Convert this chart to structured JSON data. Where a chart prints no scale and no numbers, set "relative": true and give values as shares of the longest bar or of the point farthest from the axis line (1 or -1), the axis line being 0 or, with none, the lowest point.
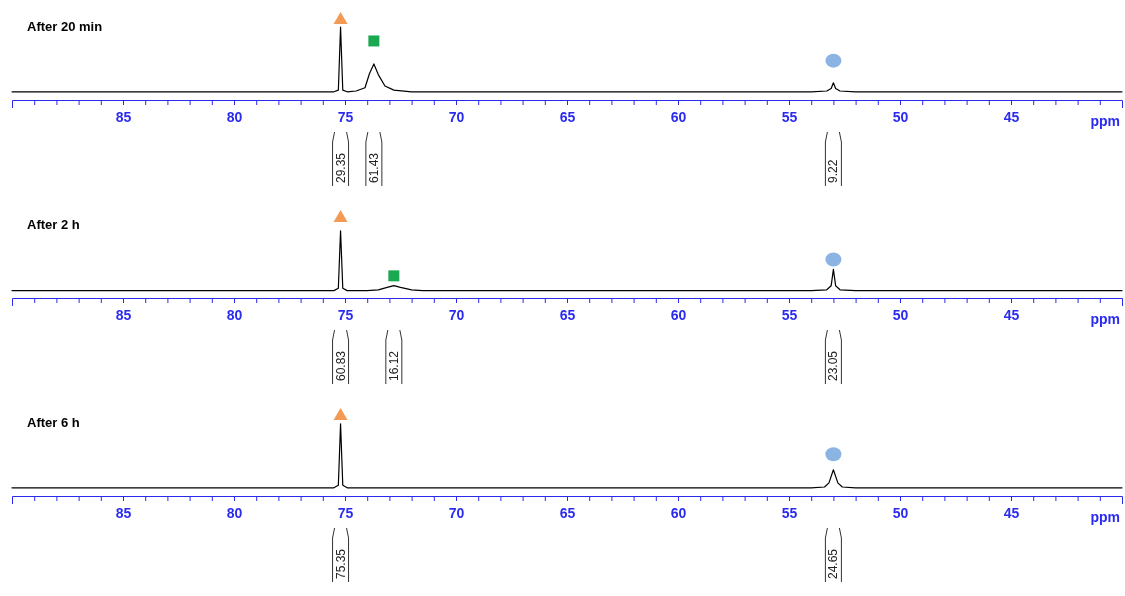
{
  "chart_data": [
    {
      "type": "line",
      "title": "After 20 min",
      "xlabel": "ppm",
      "xlim": [
        90,
        40
      ],
      "relative": true,
      "xticks": [
        {
          "value": 89,
          "label": null
        },
        {
          "value": 88,
          "label": null
        },
        {
          "value": 87,
          "label": null
        },
        {
          "value": 86,
          "label": null
        },
        85,
        {
          "value": 84,
          "label": null
        },
        {
          "value": 83,
          "label": null
        },
        {
          "value": 82,
          "label": null
        },
        {
          "value": 81,
          "label": null
        },
        80,
        {
          "value": 79,
          "label": null
        },
        {
          "value": 78,
          "label": null
        },
        {
          "value": 77,
          "label": null
        },
        {
          "value": 76,
          "label": null
        },
        75,
        {
          "value": 74,
          "label": null
        },
        {
          "value": 73,
          "label": null
        },
        {
          "value": 72,
          "label": null
        },
        {
          "value": 71,
          "label": null
        },
        70,
        {
          "value": 69,
          "label": null
        },
        {
          "value": 68,
          "label": null
        },
        {
          "value": 67,
          "label": null
        },
        {
          "value": 66,
          "label": null
        },
        65,
        {
          "value": 64,
          "label": null
        },
        {
          "value": 63,
          "label": null
        },
        {
          "value": 62,
          "label": null
        },
        {
          "value": 61,
          "label": null
        },
        60,
        {
          "value": 59,
          "label": null
        },
        {
          "value": 58,
          "label": null
        },
        {
          "value": 57,
          "label": null
        },
        {
          "value": 56,
          "label": null
        },
        55,
        {
          "value": 54,
          "label": null
        },
        {
          "value": 53,
          "label": null
        },
        {
          "value": 52,
          "label": null
        },
        {
          "value": 51,
          "label": null
        },
        50,
        {
          "value": 49,
          "label": null
        },
        {
          "value": 48,
          "label": null
        },
        {
          "value": 47,
          "label": null
        },
        {
          "value": 46,
          "label": null
        },
        45,
        {
          "value": 44,
          "label": null
        },
        {
          "value": 43,
          "label": null
        },
        {
          "value": 42,
          "label": null
        },
        {
          "value": 41,
          "label": null
        }
      ],
      "series": [
        {
          "type": "line",
          "color": "#000000",
          "x": [
            90,
            80,
            76,
            75.5,
            75.3,
            75.2,
            75.1,
            74.9,
            74.5,
            74.1,
            73.9,
            73.7,
            73.5,
            73.2,
            72.8,
            72,
            65,
            60,
            54,
            53.3,
            53.1,
            53.0,
            52.9,
            52.7,
            52,
            45,
            40
          ],
          "values": [
            0.1,
            0.1,
            0.1,
            0.1,
            0.12,
            0.89,
            0.12,
            0.1,
            0.11,
            0.15,
            0.32,
            0.44,
            0.31,
            0.17,
            0.12,
            0.1,
            0.1,
            0.1,
            0.1,
            0.11,
            0.14,
            0.21,
            0.14,
            0.11,
            0.1,
            0.1,
            0.1
          ]
        },
        {
          "type": "scatter",
          "marker": "triangle",
          "color": "#f39a55",
          "x": [
            75.2
          ],
          "values": [
            1
          ]
        },
        {
          "type": "scatter",
          "marker": "square",
          "color": "#1aa850",
          "x": [
            73.7
          ],
          "values": [
            0.72
          ]
        },
        {
          "type": "scatter",
          "marker": "circle",
          "color": "#8bb4e3",
          "x": [
            53.0
          ],
          "values": [
            0.48
          ]
        }
      ],
      "annotations": [
        "29.35",
        "61.43",
        "9.22"
      ]
    },
    {
      "type": "line",
      "title": "After 2 h",
      "xlabel": "ppm",
      "xlim": [
        90,
        40
      ],
      "relative": true,
      "xticks": [
        {
          "value": 89,
          "label": null
        },
        {
          "value": 88,
          "label": null
        },
        {
          "value": 87,
          "label": null
        },
        {
          "value": 86,
          "label": null
        },
        85,
        {
          "value": 84,
          "label": null
        },
        {
          "value": 83,
          "label": null
        },
        {
          "value": 82,
          "label": null
        },
        {
          "value": 81,
          "label": null
        },
        80,
        {
          "value": 79,
          "label": null
        },
        {
          "value": 78,
          "label": null
        },
        {
          "value": 77,
          "label": null
        },
        {
          "value": 76,
          "label": null
        },
        75,
        {
          "value": 74,
          "label": null
        },
        {
          "value": 73,
          "label": null
        },
        {
          "value": 72,
          "label": null
        },
        {
          "value": 71,
          "label": null
        },
        70,
        {
          "value": 69,
          "label": null
        },
        {
          "value": 68,
          "label": null
        },
        {
          "value": 67,
          "label": null
        },
        {
          "value": 66,
          "label": null
        },
        65,
        {
          "value": 64,
          "label": null
        },
        {
          "value": 63,
          "label": null
        },
        {
          "value": 62,
          "label": null
        },
        {
          "value": 61,
          "label": null
        },
        60,
        {
          "value": 59,
          "label": null
        },
        {
          "value": 58,
          "label": null
        },
        {
          "value": 57,
          "label": null
        },
        {
          "value": 56,
          "label": null
        },
        55,
        {
          "value": 54,
          "label": null
        },
        {
          "value": 53,
          "label": null
        },
        {
          "value": 52,
          "label": null
        },
        {
          "value": 51,
          "label": null
        },
        50,
        {
          "value": 49,
          "label": null
        },
        {
          "value": 48,
          "label": null
        },
        {
          "value": 47,
          "label": null
        },
        {
          "value": 46,
          "label": null
        },
        45,
        {
          "value": 44,
          "label": null
        },
        {
          "value": 43,
          "label": null
        },
        {
          "value": 42,
          "label": null
        },
        {
          "value": 41,
          "label": null
        }
      ],
      "series": [
        {
          "type": "line",
          "color": "#000000",
          "x": [
            90,
            80,
            76,
            75.5,
            75.3,
            75.2,
            75.1,
            74.9,
            74,
            73.5,
            73.1,
            72.8,
            72.5,
            72,
            71.5,
            65,
            60,
            54,
            53.3,
            53.1,
            53.0,
            52.9,
            52.7,
            52,
            45,
            40
          ],
          "values": [
            0.09,
            0.09,
            0.09,
            0.09,
            0.12,
            0.82,
            0.12,
            0.09,
            0.09,
            0.1,
            0.13,
            0.15,
            0.13,
            0.1,
            0.09,
            0.09,
            0.09,
            0.09,
            0.1,
            0.15,
            0.35,
            0.15,
            0.1,
            0.09,
            0.09,
            0.09
          ]
        },
        {
          "type": "scatter",
          "marker": "triangle",
          "color": "#f39a55",
          "x": [
            75.2
          ],
          "values": [
            1
          ]
        },
        {
          "type": "scatter",
          "marker": "square",
          "color": "#1aa850",
          "x": [
            72.8
          ],
          "values": [
            0.27
          ]
        },
        {
          "type": "scatter",
          "marker": "circle",
          "color": "#8bb4e3",
          "x": [
            53.0
          ],
          "values": [
            0.47
          ]
        }
      ],
      "annotations": [
        "60.83",
        "16.12",
        "23.05"
      ]
    },
    {
      "type": "line",
      "title": "After 6 h",
      "xlabel": "ppm",
      "xlim": [
        90,
        40
      ],
      "relative": true,
      "xticks": [
        {
          "value": 89,
          "label": null
        },
        {
          "value": 88,
          "label": null
        },
        {
          "value": 87,
          "label": null
        },
        {
          "value": 86,
          "label": null
        },
        85,
        {
          "value": 84,
          "label": null
        },
        {
          "value": 83,
          "label": null
        },
        {
          "value": 82,
          "label": null
        },
        {
          "value": 81,
          "label": null
        },
        80,
        {
          "value": 79,
          "label": null
        },
        {
          "value": 78,
          "label": null
        },
        {
          "value": 77,
          "label": null
        },
        {
          "value": 76,
          "label": null
        },
        75,
        {
          "value": 74,
          "label": null
        },
        {
          "value": 73,
          "label": null
        },
        {
          "value": 72,
          "label": null
        },
        {
          "value": 71,
          "label": null
        },
        70,
        {
          "value": 69,
          "label": null
        },
        {
          "value": 68,
          "label": null
        },
        {
          "value": 67,
          "label": null
        },
        {
          "value": 66,
          "label": null
        },
        65,
        {
          "value": 64,
          "label": null
        },
        {
          "value": 63,
          "label": null
        },
        {
          "value": 62,
          "label": null
        },
        {
          "value": 61,
          "label": null
        },
        60,
        {
          "value": 59,
          "label": null
        },
        {
          "value": 58,
          "label": null
        },
        {
          "value": 57,
          "label": null
        },
        {
          "value": 56,
          "label": null
        },
        55,
        {
          "value": 54,
          "label": null
        },
        {
          "value": 53,
          "label": null
        },
        {
          "value": 52,
          "label": null
        },
        {
          "value": 51,
          "label": null
        },
        50,
        {
          "value": 49,
          "label": null
        },
        {
          "value": 48,
          "label": null
        },
        {
          "value": 47,
          "label": null
        },
        {
          "value": 46,
          "label": null
        },
        45,
        {
          "value": 44,
          "label": null
        },
        {
          "value": 43,
          "label": null
        },
        {
          "value": 42,
          "label": null
        },
        {
          "value": 41,
          "label": null
        }
      ],
      "series": [
        {
          "type": "line",
          "color": "#000000",
          "x": [
            90,
            80,
            76,
            75.5,
            75.3,
            75.2,
            75.1,
            74.9,
            74,
            65,
            60,
            54,
            53.4,
            53.2,
            53.0,
            52.8,
            52.6,
            52,
            45,
            40
          ],
          "values": [
            0.1,
            0.1,
            0.1,
            0.1,
            0.13,
            0.88,
            0.13,
            0.1,
            0.1,
            0.1,
            0.1,
            0.1,
            0.11,
            0.16,
            0.32,
            0.16,
            0.11,
            0.1,
            0.1,
            0.1
          ]
        },
        {
          "type": "scatter",
          "marker": "triangle",
          "color": "#f39a55",
          "x": [
            75.2
          ],
          "values": [
            1
          ]
        },
        {
          "type": "scatter",
          "marker": "circle",
          "color": "#8bb4e3",
          "x": [
            53.0
          ],
          "values": [
            0.51
          ]
        }
      ],
      "annotations": [
        "75.35",
        "24.65"
      ]
    }
  ]
}
